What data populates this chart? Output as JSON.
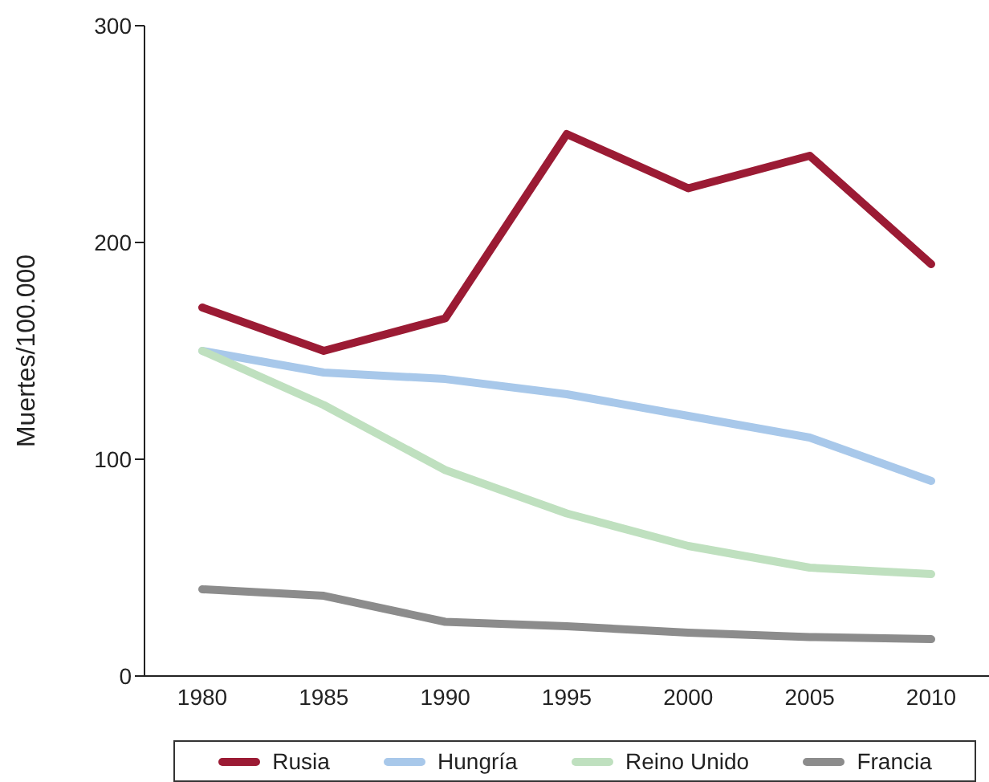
{
  "chart_data": {
    "type": "line",
    "ylabel": "Muertes/100.000",
    "categories": [
      "1980",
      "1985",
      "1990",
      "1995",
      "2000",
      "2005",
      "2010"
    ],
    "series": [
      {
        "name": "Rusia",
        "color": "#9b1b34",
        "values": [
          170,
          150,
          165,
          250,
          225,
          240,
          190
        ]
      },
      {
        "name": "Hungría",
        "color": "#a8c8ea",
        "values": [
          150,
          140,
          137,
          130,
          120,
          110,
          90
        ]
      },
      {
        "name": "Reino Unido",
        "color": "#bfe0bf",
        "values": [
          150,
          125,
          95,
          75,
          60,
          50,
          47
        ]
      },
      {
        "name": "Francia",
        "color": "#8c8c8c",
        "values": [
          40,
          37,
          25,
          23,
          20,
          18,
          17
        ]
      }
    ],
    "ylim": [
      0,
      300
    ],
    "yticks": [
      0,
      100,
      200,
      300
    ],
    "grid": false,
    "legend": "bottom",
    "marker": "none",
    "line_style": "solid"
  }
}
